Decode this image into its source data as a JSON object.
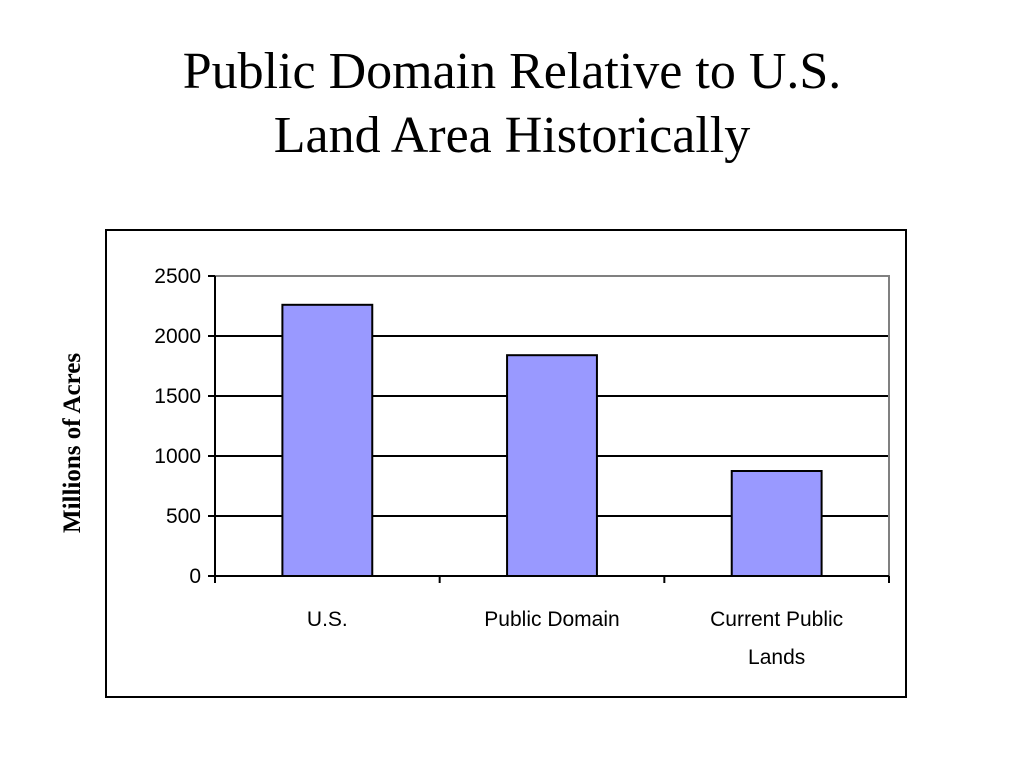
{
  "slide": {
    "title_line1": "Public Domain Relative to U.S.",
    "title_line2": "Land Area Historically"
  },
  "chart_data": {
    "type": "bar",
    "title": "",
    "xlabel": "",
    "ylabel": "Millions of Acres",
    "categories": [
      [
        "U.S."
      ],
      [
        "Public Domain"
      ],
      [
        "Current Public",
        "Lands"
      ]
    ],
    "values": [
      2260,
      1840,
      875
    ],
    "ylim": [
      0,
      2500
    ],
    "yticks": [
      0,
      500,
      1000,
      1500,
      2000,
      2500
    ],
    "grid": true,
    "legend": "none",
    "colors": {
      "bar_fill": "#9999ff",
      "bar_stroke": "#000000",
      "grid": "#000000",
      "plot_border": "#808080"
    }
  }
}
